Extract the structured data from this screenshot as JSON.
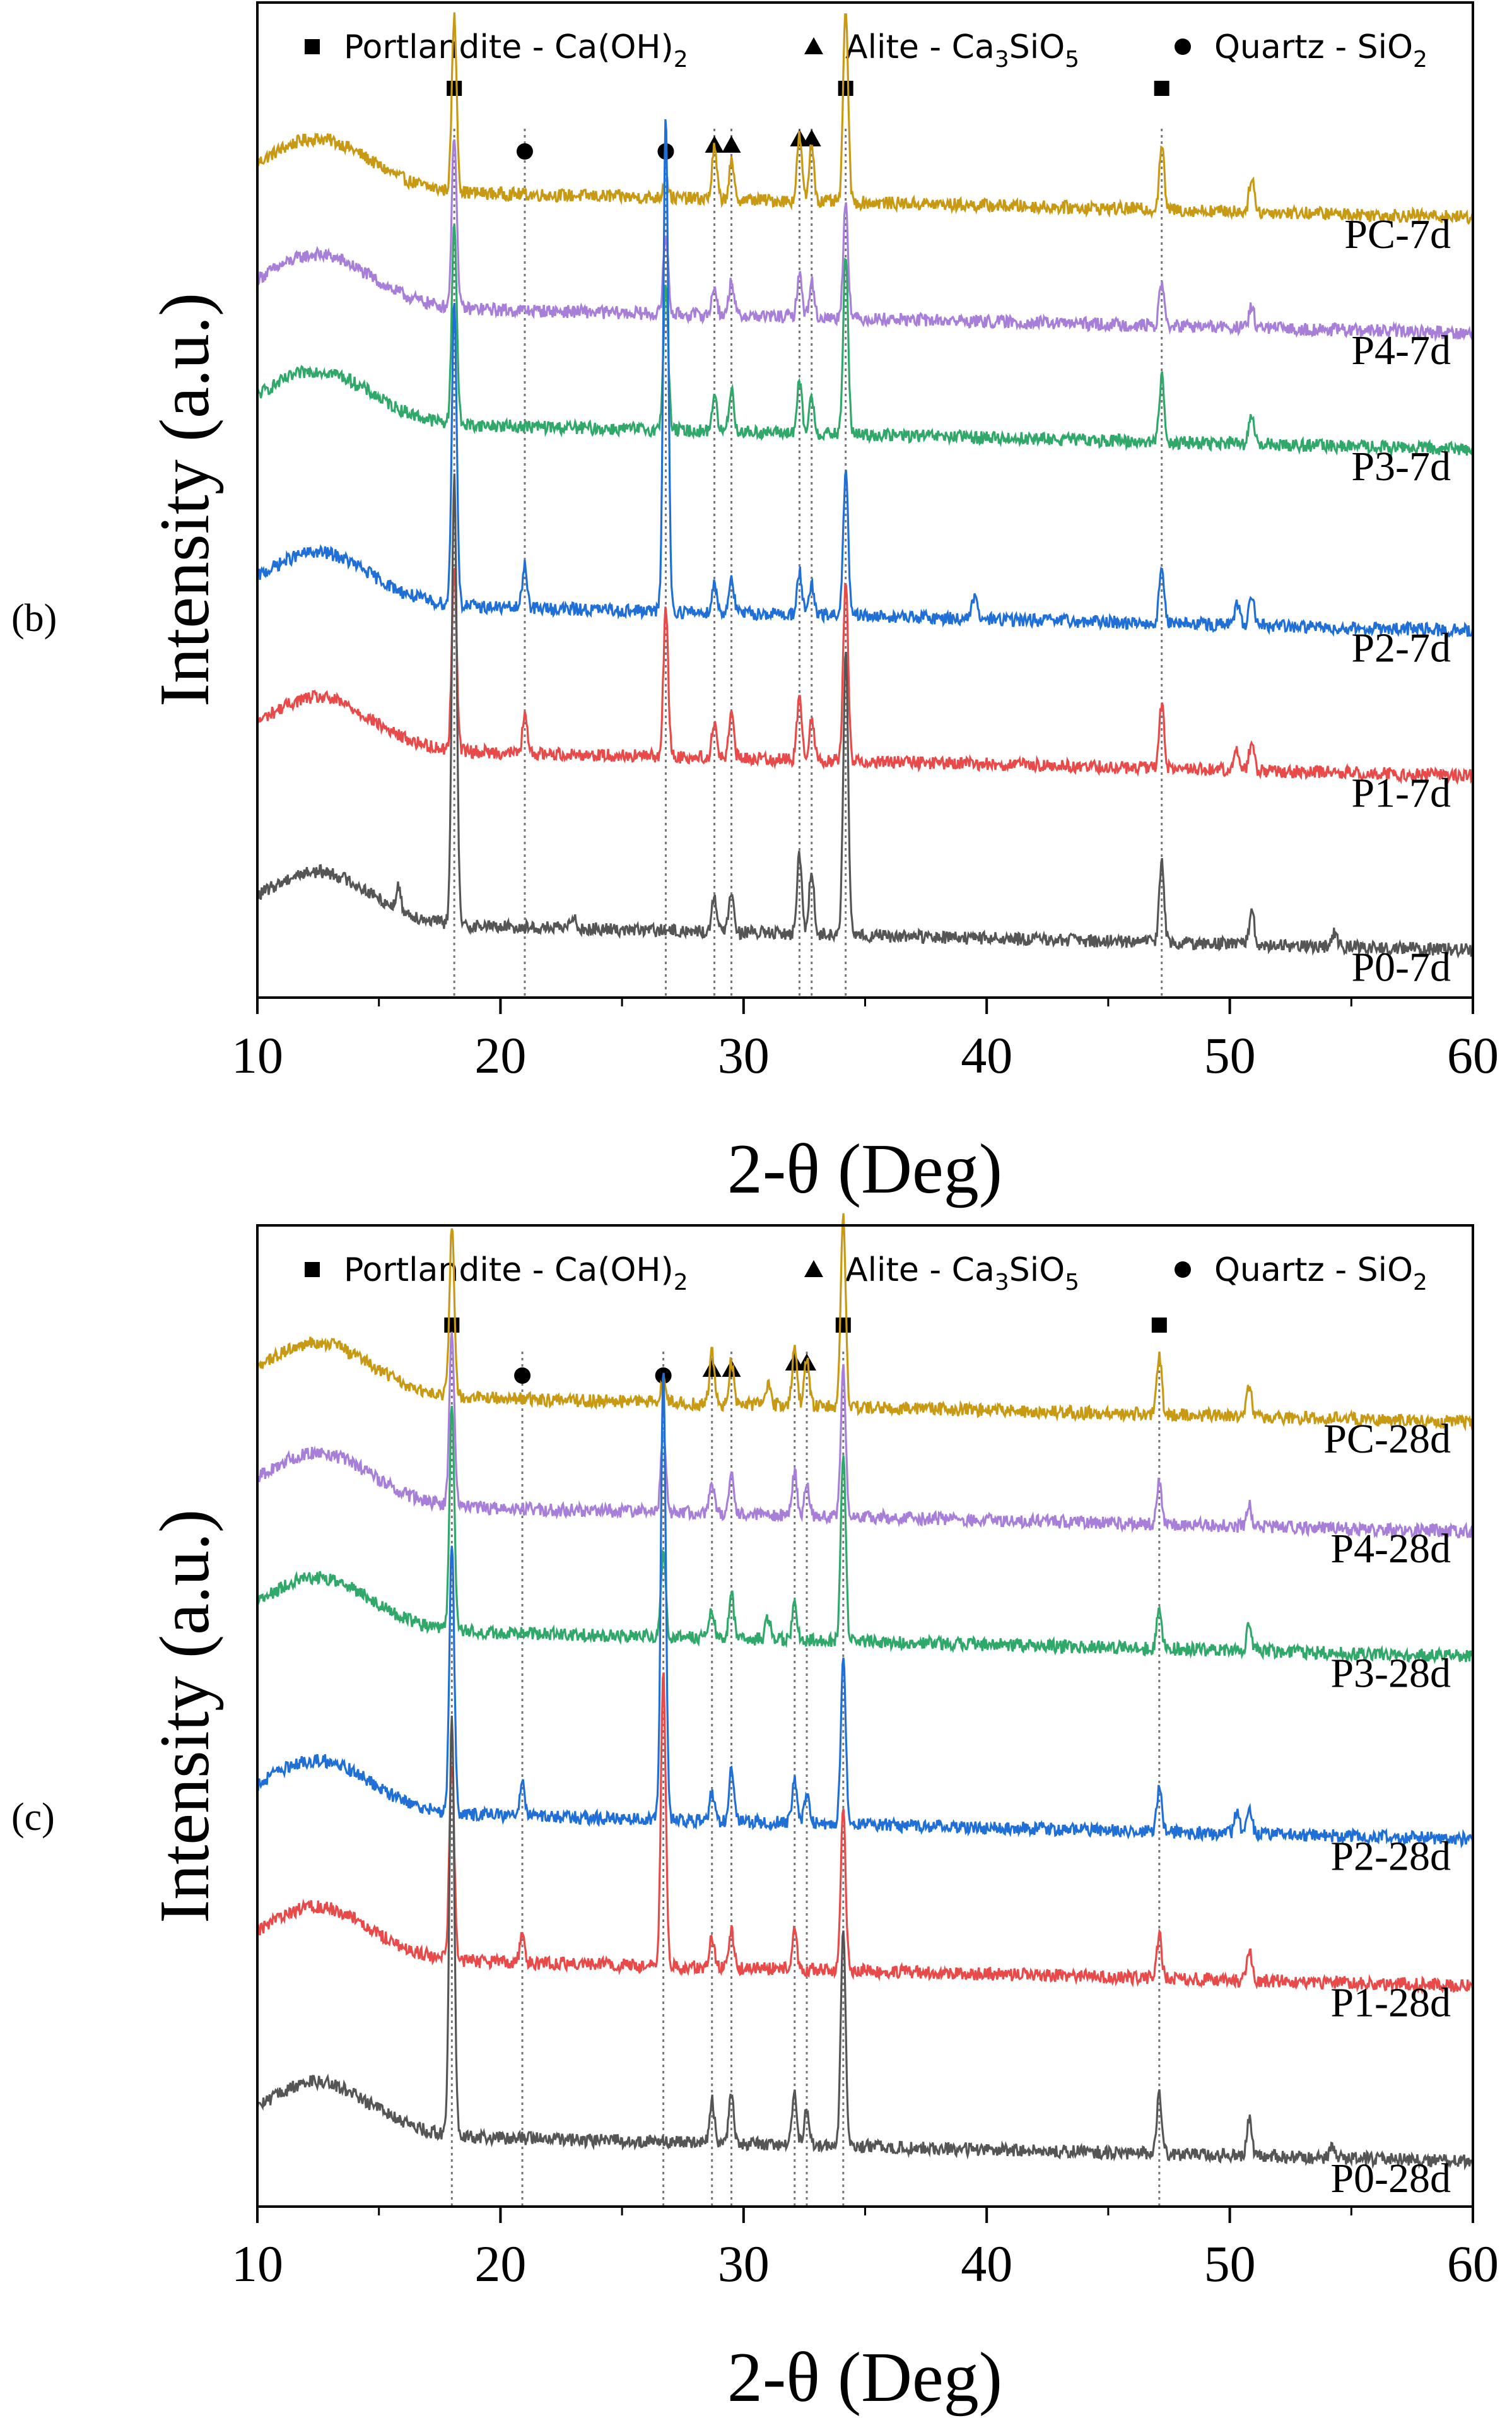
{
  "colors": {
    "PC": "#c89a14",
    "P4": "#a77fd9",
    "P3": "#2fa86a",
    "P2": "#1f6fd6",
    "P1": "#e84a4a",
    "P0": "#555555",
    "axis": "#000000",
    "refline": "#777777"
  },
  "panel_labels": {
    "b": "(b)",
    "c": "(c)"
  },
  "chart_data": [
    {
      "id": "b",
      "type": "line",
      "panel_label": "(b)",
      "xlabel": "2-θ (Deg)",
      "ylabel": "Intensity (a.u.)",
      "xlim": [
        10,
        60
      ],
      "xticks": [
        10,
        20,
        30,
        40,
        50,
        60
      ],
      "legend": [
        {
          "marker": "square",
          "text": "Portlandite - Ca(OH)",
          "sub": "2",
          "tail": ""
        },
        {
          "marker": "triangle",
          "text": "Alite - Ca",
          "sub": "3",
          "tail": "SiO",
          "sub2": "5"
        },
        {
          "marker": "circle",
          "text": "Quartz - SiO",
          "sub": "2",
          "tail": ""
        }
      ],
      "reference_lines": [
        18.1,
        21.0,
        26.8,
        28.8,
        29.5,
        32.3,
        32.8,
        34.2,
        47.2
      ],
      "markers": [
        {
          "type": "square",
          "x": 18.1
        },
        {
          "type": "circle",
          "x": 21.0
        },
        {
          "type": "circle",
          "x": 26.8
        },
        {
          "type": "triangle",
          "x": 28.8
        },
        {
          "type": "triangle",
          "x": 29.5
        },
        {
          "type": "triangle",
          "x": 32.3
        },
        {
          "type": "triangle",
          "x": 32.8
        },
        {
          "type": "square",
          "x": 34.2
        },
        {
          "type": "square",
          "x": 47.2
        }
      ],
      "series": [
        {
          "name": "PC-7d",
          "label": "PC-7d",
          "offset": 5.4,
          "peaks": [
            [
              18.1,
              1.2
            ],
            [
              26.8,
              0.15
            ],
            [
              28.8,
              0.35
            ],
            [
              29.5,
              0.25
            ],
            [
              32.3,
              0.45
            ],
            [
              32.8,
              0.4
            ],
            [
              34.2,
              1.35
            ],
            [
              47.2,
              0.45
            ],
            [
              50.9,
              0.25
            ]
          ]
        },
        {
          "name": "P4-7d",
          "label": "P4-7d",
          "offset": 4.6,
          "peaks": [
            [
              18.1,
              1.2
            ],
            [
              26.8,
              0.55
            ],
            [
              28.8,
              0.2
            ],
            [
              29.5,
              0.25
            ],
            [
              32.3,
              0.3
            ],
            [
              32.8,
              0.25
            ],
            [
              34.2,
              0.8
            ],
            [
              47.2,
              0.3
            ],
            [
              50.9,
              0.15
            ]
          ]
        },
        {
          "name": "P3-7d",
          "label": "P3-7d",
          "offset": 3.8,
          "peaks": [
            [
              18.1,
              1.4
            ],
            [
              26.8,
              1.0
            ],
            [
              28.8,
              0.25
            ],
            [
              29.5,
              0.3
            ],
            [
              32.3,
              0.35
            ],
            [
              32.8,
              0.25
            ],
            [
              34.2,
              1.25
            ],
            [
              47.2,
              0.45
            ],
            [
              50.9,
              0.2
            ]
          ]
        },
        {
          "name": "P2-7d",
          "label": "P2-7d",
          "offset": 2.55,
          "peaks": [
            [
              18.1,
              2.1
            ],
            [
              21.0,
              0.3
            ],
            [
              26.8,
              3.4
            ],
            [
              28.8,
              0.2
            ],
            [
              29.5,
              0.25
            ],
            [
              32.3,
              0.3
            ],
            [
              32.8,
              0.2
            ],
            [
              34.2,
              1.0
            ],
            [
              39.5,
              0.15
            ],
            [
              47.2,
              0.4
            ],
            [
              50.3,
              0.15
            ],
            [
              50.9,
              0.2
            ]
          ]
        },
        {
          "name": "P1-7d",
          "label": "P1-7d",
          "offset": 1.55,
          "peaks": [
            [
              18.1,
              1.25
            ],
            [
              21.0,
              0.25
            ],
            [
              26.8,
              1.0
            ],
            [
              28.8,
              0.25
            ],
            [
              29.5,
              0.3
            ],
            [
              32.3,
              0.45
            ],
            [
              32.8,
              0.3
            ],
            [
              34.2,
              1.25
            ],
            [
              47.2,
              0.45
            ],
            [
              50.3,
              0.15
            ],
            [
              50.9,
              0.2
            ]
          ]
        },
        {
          "name": "P0-7d",
          "label": "P0-7d",
          "offset": 0.35,
          "peaks": [
            [
              15.8,
              0.15
            ],
            [
              18.1,
              3.1
            ],
            [
              23.0,
              0.1
            ],
            [
              28.8,
              0.25
            ],
            [
              29.5,
              0.3
            ],
            [
              32.3,
              0.55
            ],
            [
              32.8,
              0.45
            ],
            [
              34.2,
              1.95
            ],
            [
              47.2,
              0.55
            ],
            [
              50.9,
              0.25
            ],
            [
              54.3,
              0.1
            ]
          ]
        }
      ]
    },
    {
      "id": "c",
      "type": "line",
      "panel_label": "(c)",
      "xlabel": "2-θ (Deg)",
      "ylabel": "Intensity (a.u.)",
      "xlim": [
        10,
        60
      ],
      "xticks": [
        10,
        20,
        30,
        40,
        50,
        60
      ],
      "legend": [
        {
          "marker": "square",
          "text": "Portlandite - Ca(OH)",
          "sub": "2",
          "tail": ""
        },
        {
          "marker": "triangle",
          "text": "Alite - Ca",
          "sub": "3",
          "tail": "SiO",
          "sub2": "5"
        },
        {
          "marker": "circle",
          "text": "Quartz - SiO",
          "sub": "2",
          "tail": ""
        }
      ],
      "reference_lines": [
        18.0,
        20.9,
        26.7,
        28.7,
        29.5,
        32.1,
        32.6,
        34.1,
        47.1
      ],
      "markers": [
        {
          "type": "square",
          "x": 18.0
        },
        {
          "type": "circle",
          "x": 20.9
        },
        {
          "type": "circle",
          "x": 26.7
        },
        {
          "type": "triangle",
          "x": 28.7
        },
        {
          "type": "triangle",
          "x": 29.5
        },
        {
          "type": "triangle",
          "x": 32.1
        },
        {
          "type": "triangle",
          "x": 32.6
        },
        {
          "type": "square",
          "x": 34.1
        },
        {
          "type": "square",
          "x": 47.1
        }
      ],
      "series": [
        {
          "name": "PC-28d",
          "label": "PC-28d",
          "offset": 5.4,
          "peaks": [
            [
              18.0,
              1.15
            ],
            [
              26.7,
              0.15
            ],
            [
              28.7,
              0.35
            ],
            [
              29.5,
              0.3
            ],
            [
              31.0,
              0.15
            ],
            [
              32.1,
              0.4
            ],
            [
              32.6,
              0.35
            ],
            [
              34.1,
              1.3
            ],
            [
              47.1,
              0.4
            ],
            [
              50.8,
              0.2
            ]
          ]
        },
        {
          "name": "P4-28d",
          "label": "P4-28d",
          "offset": 4.65,
          "peaks": [
            [
              18.0,
              1.2
            ],
            [
              26.7,
              0.55
            ],
            [
              28.7,
              0.2
            ],
            [
              29.5,
              0.3
            ],
            [
              32.1,
              0.3
            ],
            [
              32.6,
              0.2
            ],
            [
              34.1,
              1.0
            ],
            [
              47.1,
              0.3
            ],
            [
              50.8,
              0.15
            ]
          ]
        },
        {
          "name": "P3-28d",
          "label": "P3-28d",
          "offset": 3.8,
          "peaks": [
            [
              18.0,
              1.55
            ],
            [
              26.7,
              0.55
            ],
            [
              28.7,
              0.2
            ],
            [
              29.5,
              0.3
            ],
            [
              31.0,
              0.15
            ],
            [
              32.1,
              0.25
            ],
            [
              34.1,
              1.3
            ],
            [
              47.1,
              0.3
            ],
            [
              50.8,
              0.2
            ]
          ]
        },
        {
          "name": "P2-28d",
          "label": "P2-28d",
          "offset": 2.55,
          "peaks": [
            [
              18.0,
              1.85
            ],
            [
              20.9,
              0.25
            ],
            [
              26.7,
              3.1
            ],
            [
              28.7,
              0.2
            ],
            [
              29.5,
              0.35
            ],
            [
              32.1,
              0.3
            ],
            [
              32.6,
              0.2
            ],
            [
              34.1,
              1.15
            ],
            [
              47.1,
              0.3
            ],
            [
              50.3,
              0.15
            ],
            [
              50.8,
              0.2
            ]
          ]
        },
        {
          "name": "P1-28d",
          "label": "P1-28d",
          "offset": 1.55,
          "peaks": [
            [
              18.0,
              1.35
            ],
            [
              20.9,
              0.2
            ],
            [
              26.7,
              2.0
            ],
            [
              28.7,
              0.2
            ],
            [
              29.5,
              0.25
            ],
            [
              32.1,
              0.25
            ],
            [
              34.1,
              1.1
            ],
            [
              47.1,
              0.3
            ],
            [
              50.8,
              0.2
            ]
          ]
        },
        {
          "name": "P0-28d",
          "label": "P0-28d",
          "offset": 0.35,
          "peaks": [
            [
              18.0,
              2.9
            ],
            [
              28.7,
              0.3
            ],
            [
              29.5,
              0.35
            ],
            [
              32.1,
              0.35
            ],
            [
              32.6,
              0.25
            ],
            [
              34.1,
              1.45
            ],
            [
              47.1,
              0.4
            ],
            [
              50.8,
              0.25
            ],
            [
              54.2,
              0.1
            ]
          ]
        }
      ]
    }
  ]
}
